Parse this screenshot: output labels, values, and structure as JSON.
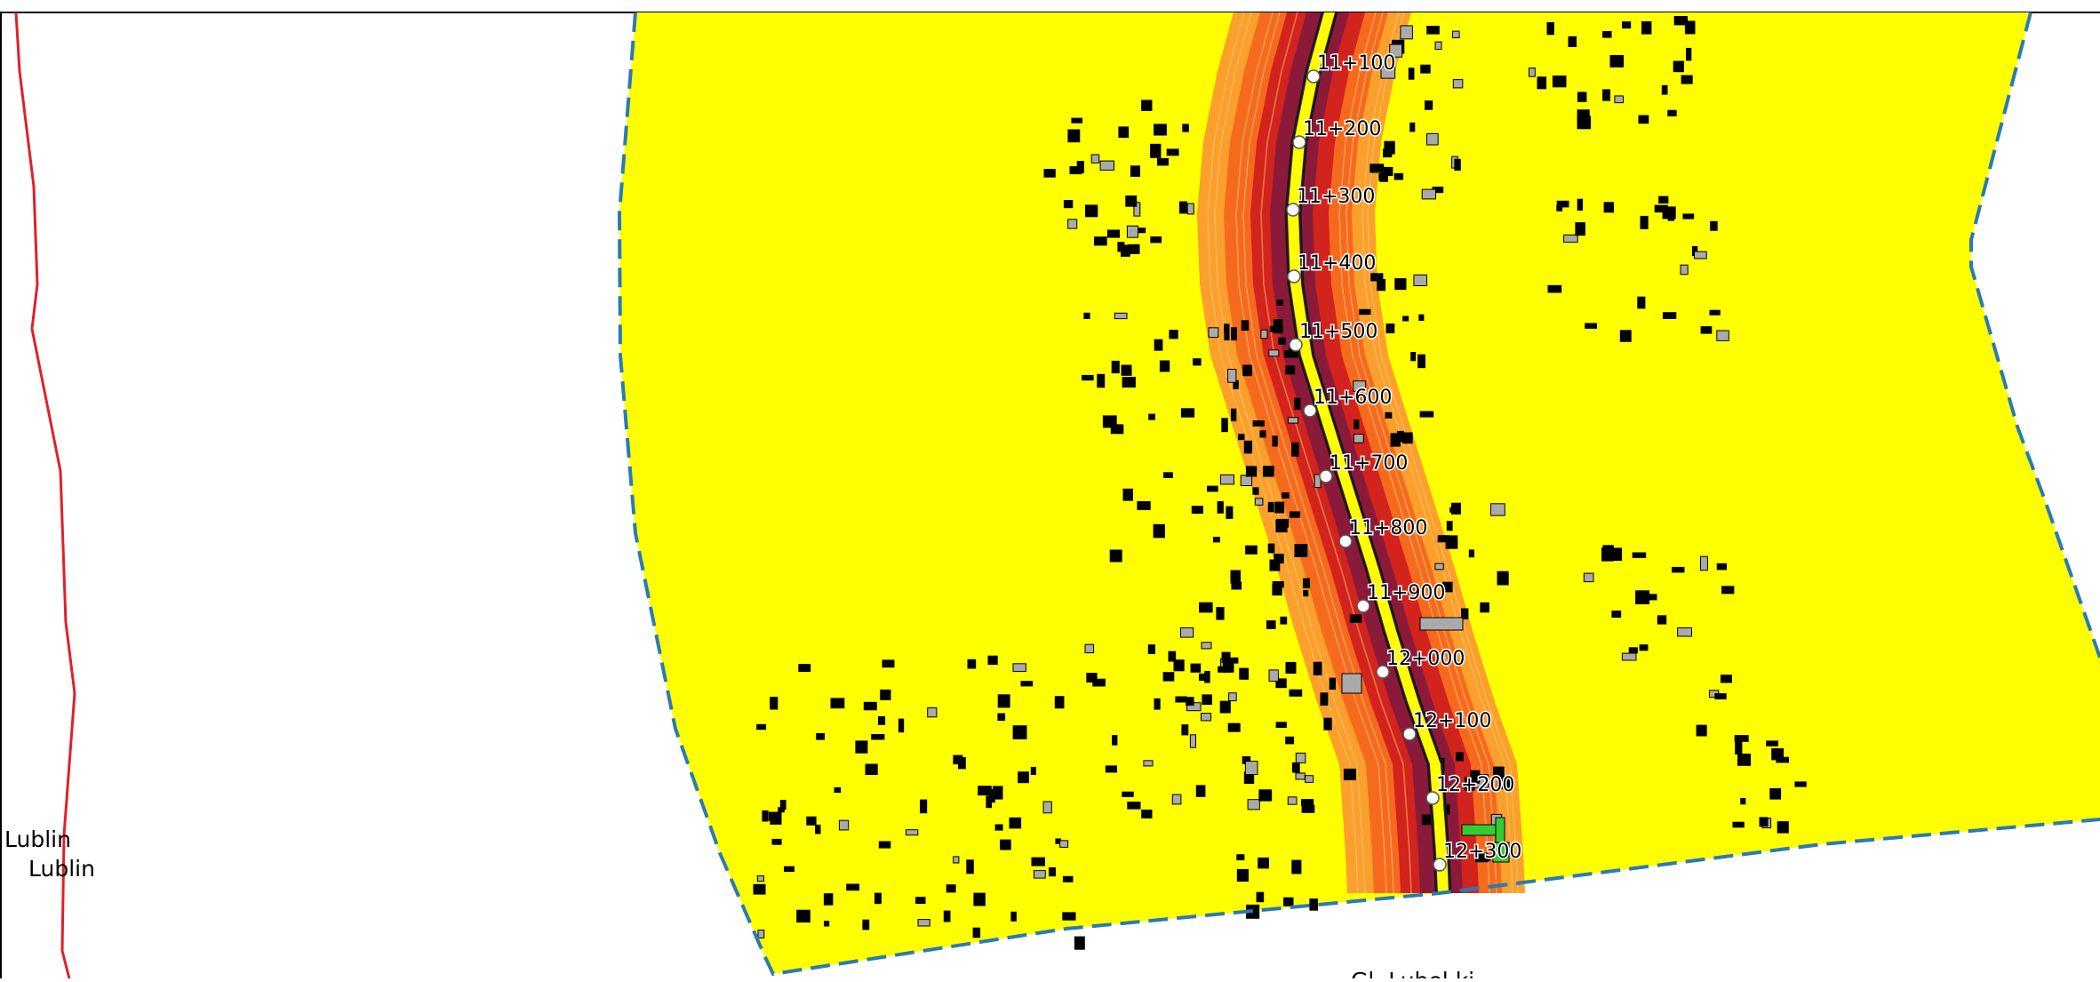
{
  "map": {
    "colors": {
      "study_area_fill": "#ffff00",
      "study_area_border": "#2a7ab5",
      "admin_boundary": "#e0202a",
      "noise_zone_outer": "#fba02c",
      "noise_zone_mid": "#f66a1e",
      "noise_zone_inner": "#d2231c",
      "noise_zone_core": "#8b1a3a",
      "road_edge": "#1a1a1a",
      "road_center": "#ffff00",
      "building_dark": "#000000",
      "building_grey": "#aaaaaa",
      "building_green": "#33cc33"
    },
    "place_labels": [
      "Lublin",
      "Lublin"
    ],
    "bottom_label": "Gl. Lubel ki",
    "chainage_markers": [
      "11+100",
      "11+200",
      "11+300",
      "11+400",
      "11+500",
      "11+600",
      "11+700",
      "11+800",
      "11+900",
      "12+000",
      "12+100",
      "12+200",
      "12+300"
    ]
  }
}
